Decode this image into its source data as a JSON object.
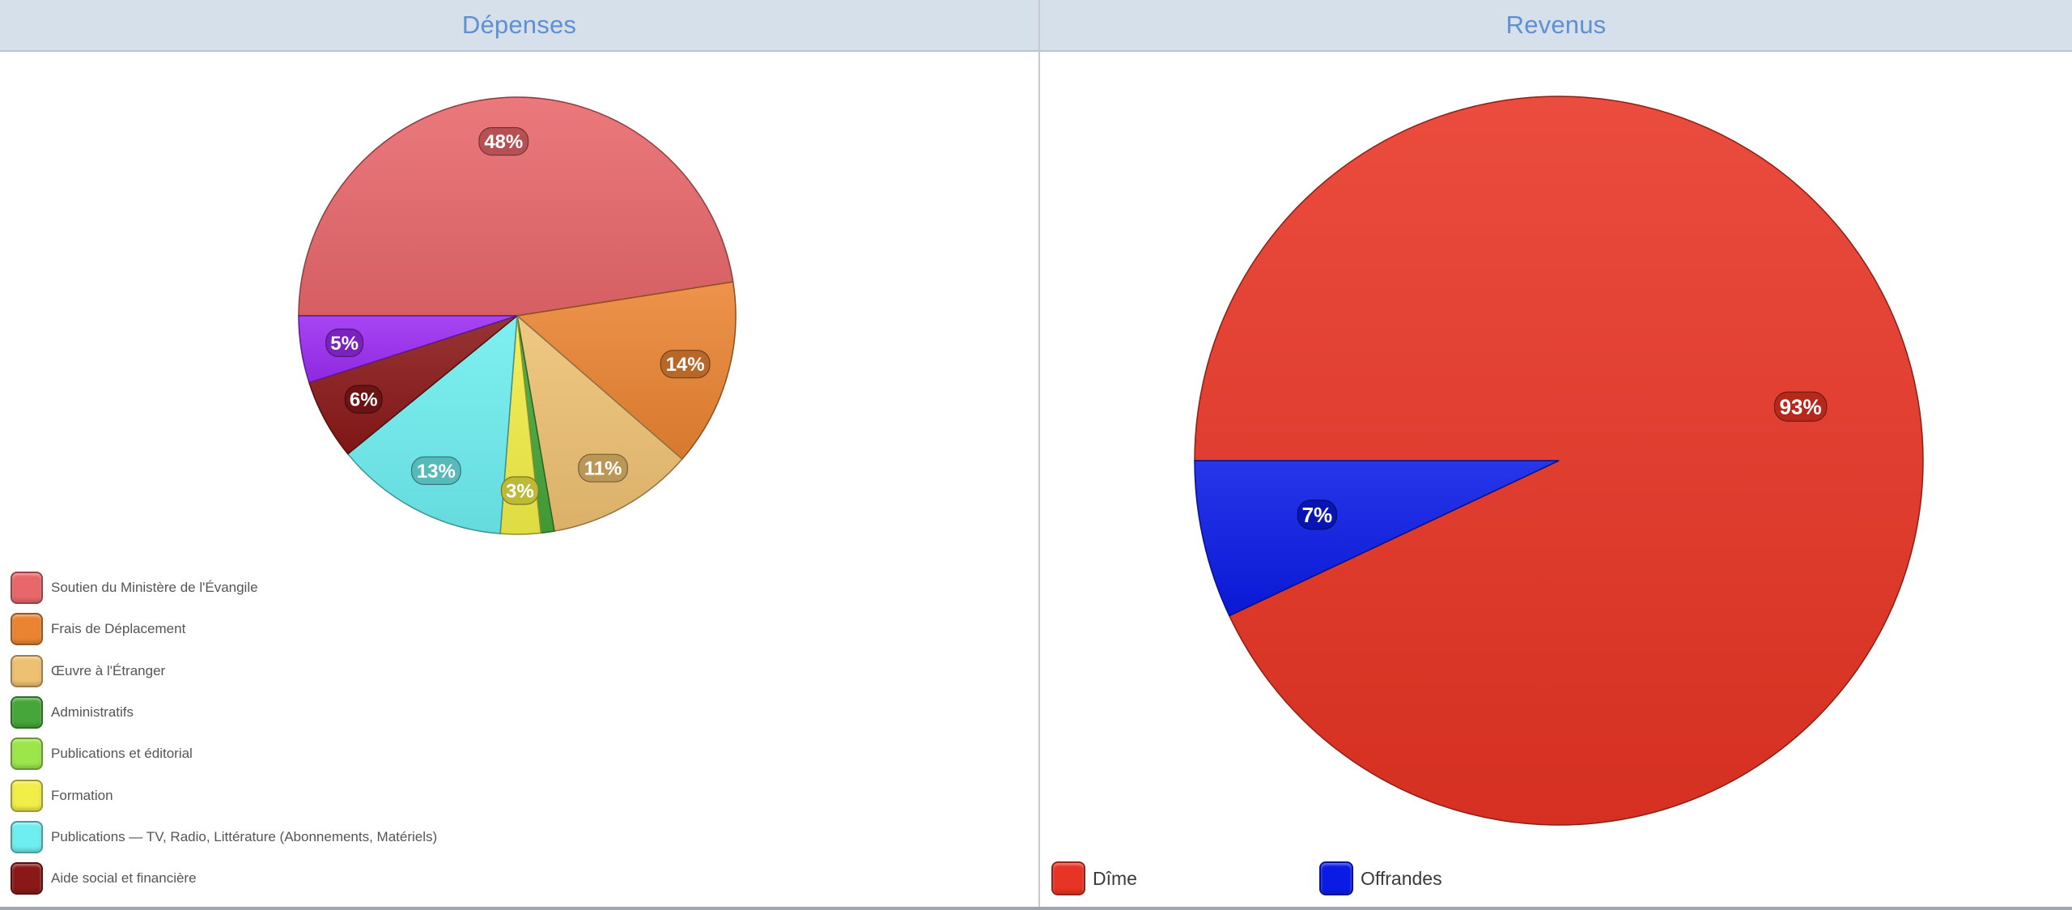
{
  "panels": [
    {
      "title": "Dépenses",
      "chart_data": {
        "type": "pie",
        "title": "Dépenses",
        "legend_position": "bottom-left",
        "slices": [
          {
            "label": "Soutien du Ministère de l'Évangile",
            "value": 48,
            "display": "48%",
            "color": "#e8676a"
          },
          {
            "label": "Frais de Déplacement",
            "value": 14,
            "display": "14%",
            "color": "#ea8432"
          },
          {
            "label": "Œuvre à l'Étranger",
            "value": 11,
            "display": "11%",
            "color": "#eec072"
          },
          {
            "label": "Administratifs",
            "value": 1,
            "display": "",
            "color": "#46a63a"
          },
          {
            "label": "Publications et éditorial",
            "value": 0,
            "display": "",
            "color": "#9ce64a"
          },
          {
            "label": "Formation",
            "value": 3,
            "display": "3%",
            "color": "#f2ee48"
          },
          {
            "label": "Publications — TV, Radio, Littérature (Abonnements, Matériels)",
            "value": 13,
            "display": "13%",
            "color": "#6eeef0"
          },
          {
            "label": "Aide social et financière",
            "value": 6,
            "display": "6%",
            "color": "#8a1818"
          },
          {
            "label": "",
            "value": 5,
            "display": "5%",
            "color": "#9b2cf2"
          }
        ]
      }
    },
    {
      "title": "Revenus",
      "chart_data": {
        "type": "pie",
        "title": "Revenus",
        "legend_position": "bottom-left",
        "slices": [
          {
            "label": "Dîme",
            "value": 93,
            "display": "93%",
            "color": "#e73424"
          },
          {
            "label": "Offrandes",
            "value": 7,
            "display": "7%",
            "color": "#0a1be6"
          }
        ]
      }
    }
  ]
}
